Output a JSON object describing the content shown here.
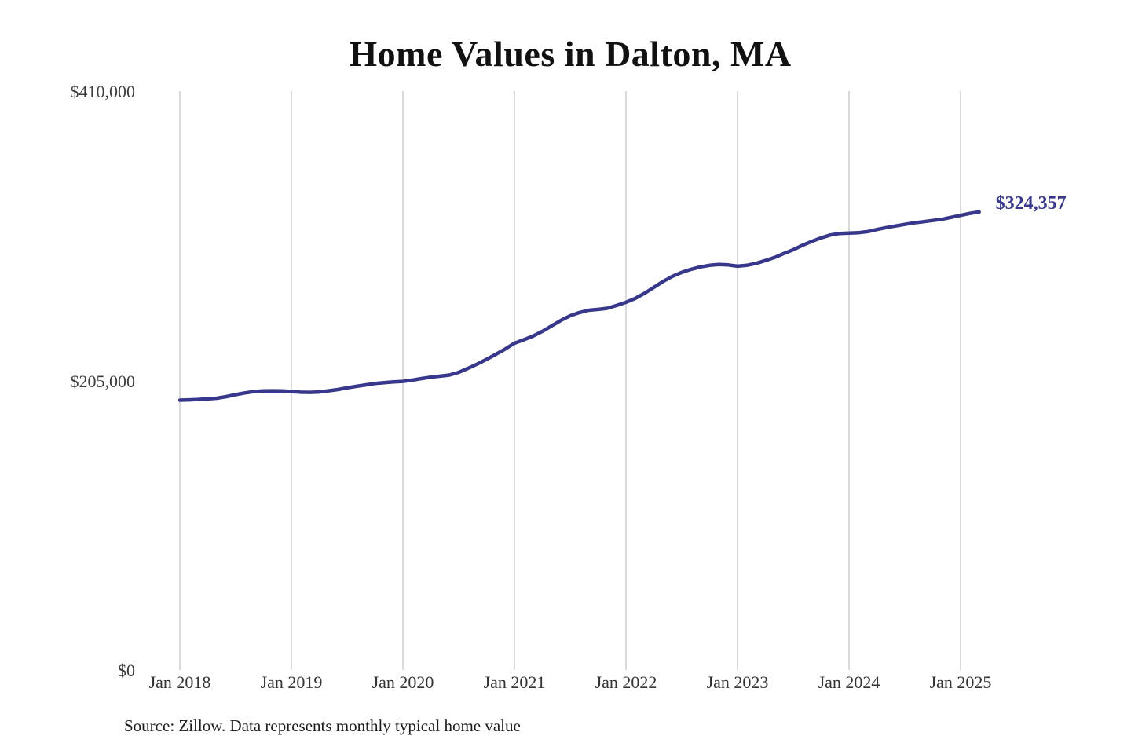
{
  "chart": {
    "title": "Home Values in Dalton, MA",
    "source": "Source: Zillow. Data represents monthly typical home value",
    "end_label": "$324,357",
    "colors": {
      "line": "#37378b",
      "grid": "#cbcbcb",
      "title": "#111111",
      "tick": "#3d3d3d",
      "end_label": "#37378b",
      "source": "#1d1d1d",
      "background": "#ffffff"
    }
  },
  "chart_data": {
    "type": "line",
    "title": "Home Values in Dalton, MA",
    "xlabel": "",
    "ylabel": "",
    "ylim": [
      0,
      410000
    ],
    "y_tick_values": [
      410000,
      205000,
      0
    ],
    "y_tick_labels": [
      "$410,000",
      "$205,000",
      "$0"
    ],
    "x_tick_labels": [
      "Jan 2018",
      "Jan 2019",
      "Jan 2020",
      "Jan 2021",
      "Jan 2022",
      "Jan 2023",
      "Jan 2024",
      "Jan 2025"
    ],
    "x_start_month": "2018-01",
    "x_end_month": "2025-03",
    "grid": "vertical-only",
    "legend": "none",
    "end_annotation": "$324,357",
    "series": [
      {
        "name": "Monthly typical home value",
        "values": [
          191100,
          191300,
          191600,
          192000,
          192500,
          193600,
          195000,
          196200,
          197200,
          197600,
          197700,
          197600,
          197200,
          196700,
          196600,
          196900,
          197700,
          198600,
          199800,
          200900,
          201900,
          202900,
          203500,
          204000,
          204400,
          205300,
          206400,
          207400,
          208100,
          208900,
          210800,
          213600,
          216700,
          220000,
          223600,
          227300,
          231400,
          233900,
          236500,
          239800,
          243700,
          247600,
          250900,
          253200,
          254800,
          255400,
          256200,
          258200,
          260400,
          263200,
          266800,
          271000,
          275200,
          278800,
          281600,
          283800,
          285500,
          286600,
          287200,
          286900,
          286000,
          286600,
          288000,
          290000,
          292200,
          295000,
          297700,
          300800,
          303600,
          306100,
          308100,
          309200,
          309400,
          309700,
          310500,
          312000,
          313300,
          314500,
          315600,
          316700,
          317500,
          318400,
          319200,
          320600,
          322000,
          323400,
          324357
        ]
      }
    ]
  }
}
